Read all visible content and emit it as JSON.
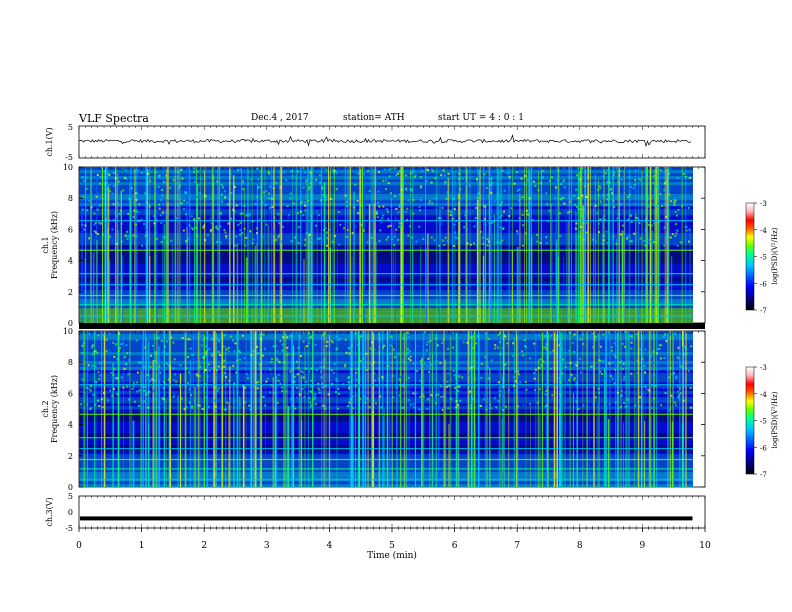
{
  "header": {
    "title": "VLF  Spectra",
    "date": "Dec.4  , 2017",
    "station": "station= ATH",
    "start_ut": "start  UT  =   4  : 0   : 1"
  },
  "colors": {
    "spectrogram_background": "#0a1a8c",
    "trace": "#000000",
    "colormap": [
      "#000000",
      "#00007a",
      "#0000ff",
      "#0064ff",
      "#00c8ff",
      "#00ff96",
      "#64ff00",
      "#ffff00",
      "#ff6400",
      "#ff0000",
      "#ffb4b4",
      "#ffffff"
    ]
  },
  "chart_data": [
    {
      "type": "line",
      "panel": "ch1-waveform",
      "ylabel": "ch.1(V)",
      "ylim": [
        -5,
        5
      ],
      "yticks": [
        "5",
        "-5"
      ],
      "series": [
        {
          "x_min": [
            0,
            9.8
          ],
          "y_mean": 0.3,
          "y_spread": 0.5
        }
      ]
    },
    {
      "type": "heatmap",
      "panel": "ch1-spectrogram",
      "ylabel": "ch.1\nFrequency  (kHz)",
      "ylim": [
        0,
        10
      ],
      "yticks": [
        "0",
        "2",
        "4",
        "6",
        "8",
        "10"
      ],
      "xlim": [
        0,
        9.8
      ],
      "colorbar": {
        "label": "log(PSD)(V²/Hz)",
        "range": [
          -7,
          -3
        ],
        "ticks": [
          "-3",
          "-4",
          "-5",
          "-6",
          "-7"
        ]
      }
    },
    {
      "type": "heatmap",
      "panel": "ch2-spectrogram",
      "ylabel": "ch.2\nFrequency  (kHz)",
      "ylim": [
        0,
        10
      ],
      "yticks": [
        "0",
        "2",
        "4",
        "6",
        "8",
        "10"
      ],
      "xlim": [
        0,
        9.8
      ],
      "colorbar": {
        "label": "log(PSD)(V²/Hz)",
        "range": [
          -7,
          -3
        ],
        "ticks": [
          "-3",
          "-4",
          "-5",
          "-6",
          "-7"
        ]
      }
    },
    {
      "type": "line",
      "panel": "ch3-waveform",
      "ylabel": "ch.3(V)",
      "ylim": [
        -5,
        5
      ],
      "yticks": [
        "5",
        "0",
        "-5"
      ],
      "series": [
        {
          "x_min": [
            0,
            9.8
          ],
          "y_mean": -2.0,
          "y_spread": 0.1
        }
      ]
    }
  ],
  "xaxis": {
    "label": "Time  (min)",
    "ticks": [
      "0",
      "1",
      "2",
      "3",
      "4",
      "5",
      "6",
      "7",
      "8",
      "9",
      "10"
    ],
    "range": [
      0,
      10
    ]
  },
  "panels": {
    "ch1_wave_label": "ch.1(V)",
    "ch1_wave_top": "5",
    "ch1_wave_bottom": "-5",
    "ch1_spec_label_a": "ch.1",
    "ch1_spec_label_b": "Frequency  (kHz)",
    "ch2_spec_label_a": "ch.2",
    "ch2_spec_label_b": "Frequency  (kHz)",
    "ch3_wave_label": "ch.3(V)",
    "ch3_wave_top": "5",
    "ch3_wave_mid": "0",
    "ch3_wave_bottom": "-5",
    "colorbar_label": "log(PSD)(V²/Hz)"
  }
}
